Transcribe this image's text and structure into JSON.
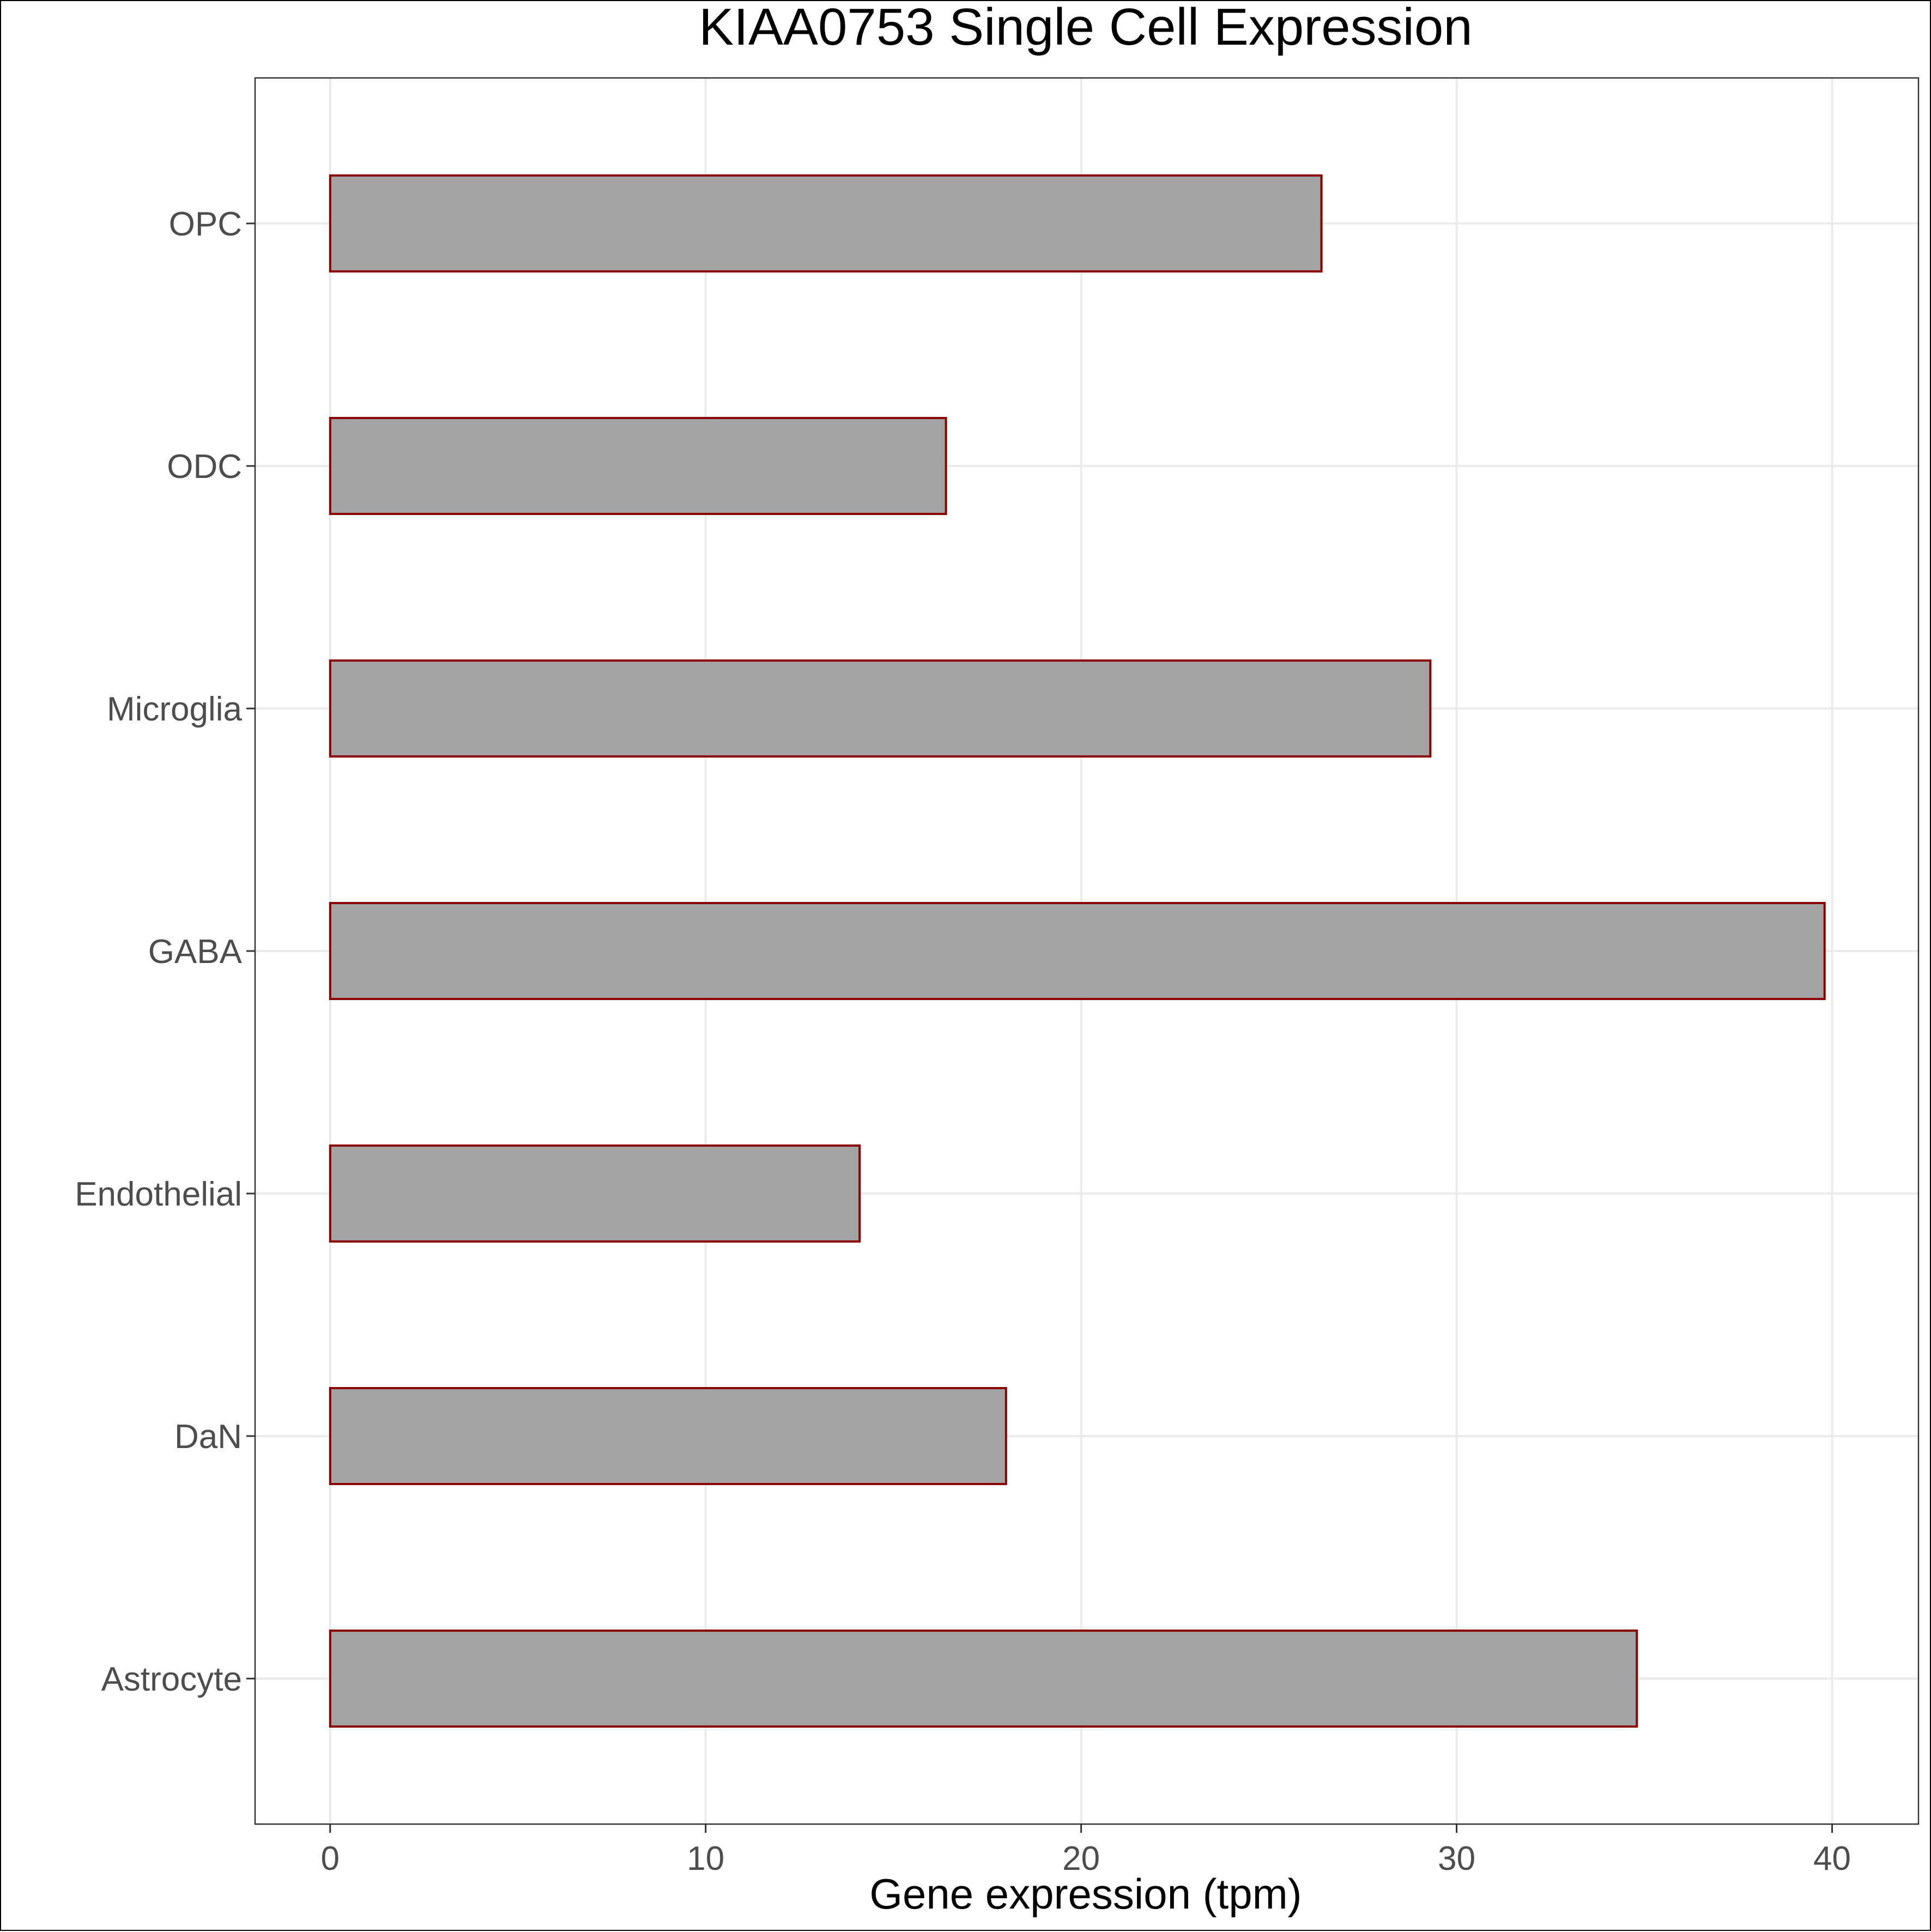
{
  "chart_data": {
    "type": "bar",
    "orientation": "horizontal",
    "title": "KIAA0753 Single Cell Expression",
    "xlabel": "Gene expression (tpm)",
    "ylabel": "",
    "categories": [
      "Astrocyte",
      "DaN",
      "Endothelial",
      "GABA",
      "Microglia",
      "ODC",
      "OPC"
    ],
    "values": [
      34.8,
      18.0,
      14.1,
      39.8,
      29.3,
      16.4,
      26.4
    ],
    "xlim": [
      -2,
      42.3
    ],
    "xticks": [
      0,
      10,
      20,
      30,
      40
    ],
    "grid": true,
    "bar_fill": "#a3a3a3",
    "bar_stroke": "#8b0000",
    "gridline_color": "#ebebeb"
  }
}
